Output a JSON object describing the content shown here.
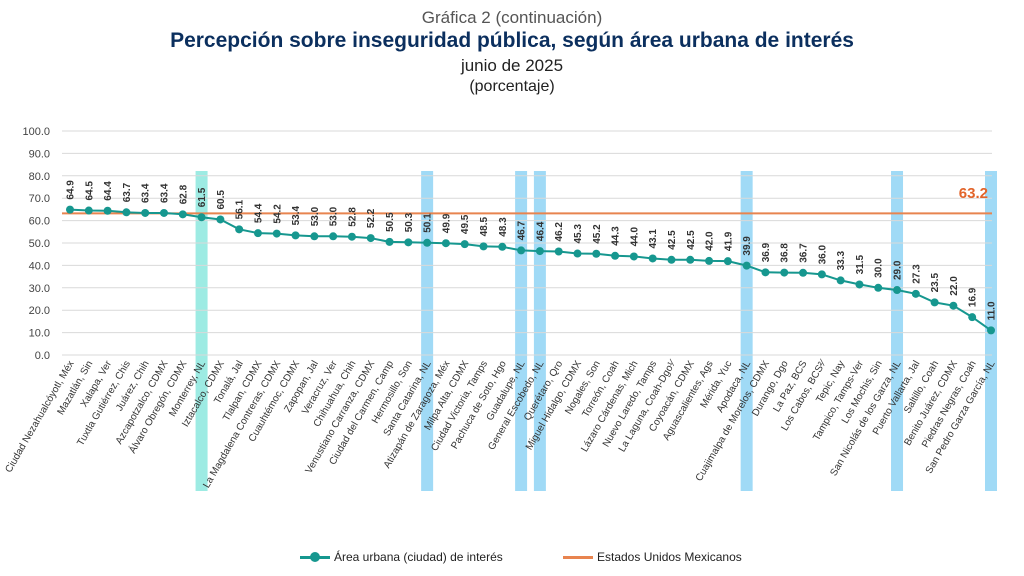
{
  "header": {
    "kicker": "Gráfica 2 (continuación)",
    "title": "Percepción sobre inseguridad pública, según área urbana de interés",
    "subtitle": "junio de 2025",
    "unit": "(porcentaje)"
  },
  "colors": {
    "series": "#16978f",
    "reference": "#e8844f",
    "reference_label": "#e2642a",
    "highlight": "#8fd3f5",
    "highlight_alt": "#8ce8de",
    "grid": "#d9d9d9",
    "axis_text": "#444444"
  },
  "chart_data": {
    "type": "line",
    "title": "Percepción sobre inseguridad pública, según área urbana de interés",
    "ylim": [
      0,
      100
    ],
    "yticks": [
      0,
      10,
      20,
      30,
      40,
      50,
      60,
      70,
      80,
      90,
      100
    ],
    "ytick_labels": [
      "0.0",
      "10.0",
      "20.0",
      "30.0",
      "40.0",
      "50.0",
      "60.0",
      "70.0",
      "80.0",
      "90.0",
      "100.0"
    ],
    "grid": true,
    "categories": [
      "Ciudad Nezahualcóyotl, Méx",
      "Mazatlán, Sin",
      "Xalapa, Ver",
      "Tuxtla Gutiérrez, Chis",
      "Juárez, Chih",
      "Azcapotzalco, CDMX",
      "Álvaro Obregón, CDMX",
      "Monterrey, NL",
      "Iztacalco, CDMX",
      "Tonalá, Jal",
      "Tlalpan, CDMX",
      "La Magdalena Contreras, CDMX",
      "Cuauhtémoc, CDMX",
      "Zapopan, Jal",
      "Veracruz, Ver",
      "Chihuahua, Chih",
      "Venustiano Carranza, CDMX",
      "Ciudad del Carmen, Camp",
      "Hermosillo, Son",
      "Santa Catarina, NL",
      "Atizapán de Zaragoza, Méx",
      "Milpa Alta, CDMX",
      "Ciudad Victoria, Tamps",
      "Pachuca de Soto, Hgo",
      "Guadalupe, NL",
      "General Escobedo, NL",
      "Querétaro, Qro",
      "Miguel Hidalgo, CDMX",
      "Nogales, Son",
      "Torreón, Coah",
      "Lázaro Cárdenas, Mich",
      "Nuevo Laredo, Tamps",
      "La Laguna, Coah-Dgo¹⁄",
      "Coyoacán, CDMX",
      "Aguascalientes, Ags",
      "Mérida, Yuc",
      "Apodaca, NL",
      "Cuajimalpa de Morelos, CDMX",
      "Durango, Dgo",
      "La Paz, BCS",
      "Los Cabos, BCS²⁄",
      "Tepic, Nay",
      "Tampico, Tamps-Ver",
      "Los Mochis, Sin",
      "San Nicolás de los Garza, NL",
      "Puerto Vallarta, Jal",
      "Saltillo, Coah",
      "Benito Juárez, CDMX",
      "Piedras Negras, Coah",
      "San Pedro Garza García, NL"
    ],
    "values": [
      64.9,
      64.5,
      64.4,
      63.7,
      63.4,
      63.4,
      62.8,
      61.5,
      60.5,
      56.1,
      54.4,
      54.2,
      53.4,
      53.0,
      53.0,
      52.8,
      52.2,
      50.5,
      50.3,
      50.1,
      49.9,
      49.5,
      48.5,
      48.3,
      46.7,
      46.4,
      46.2,
      45.3,
      45.2,
      44.3,
      44.0,
      43.1,
      42.5,
      42.5,
      42.0,
      41.9,
      39.9,
      36.9,
      36.8,
      36.7,
      36.0,
      33.3,
      31.5,
      30.0,
      29.0,
      27.3,
      23.5,
      22.0,
      16.9,
      11.0
    ],
    "value_labels": [
      "64.9",
      "64.5",
      "64.4",
      "63.7",
      "63.4",
      "63.4",
      "62.8",
      "61.5",
      "60.5",
      "56.1",
      "54.4",
      "54.2",
      "53.4",
      "53.0",
      "53.0",
      "52.8",
      "52.2",
      "50.5",
      "50.3",
      "50.1",
      "49.9",
      "49.5",
      "48.5",
      "48.3",
      "46.7",
      "46.4",
      "46.2",
      "45.3",
      "45.2",
      "44.3",
      "44.0",
      "43.1",
      "42.5",
      "42.5",
      "42.0",
      "41.9",
      "39.9",
      "36.9",
      "36.8",
      "36.7",
      "36.0",
      "33.3",
      "31.5",
      "30.0",
      "29.0",
      "27.3",
      "23.5",
      "22.0",
      "16.9",
      "11.0"
    ],
    "highlighted": [
      "Monterrey, NL",
      "Santa Catarina, NL",
      "Guadalupe, NL",
      "General Escobedo, NL",
      "Apodaca, NL",
      "San Nicolás de los Garza, NL",
      "San Pedro Garza García, NL"
    ],
    "highlight_alt": [
      "Monterrey, NL"
    ],
    "reference": {
      "name": "Estados Unidos Mexicanos",
      "value": 63.2,
      "label": "63.2"
    },
    "series_name": "Área urbana (ciudad) de interés",
    "legend_position": "bottom-center"
  }
}
